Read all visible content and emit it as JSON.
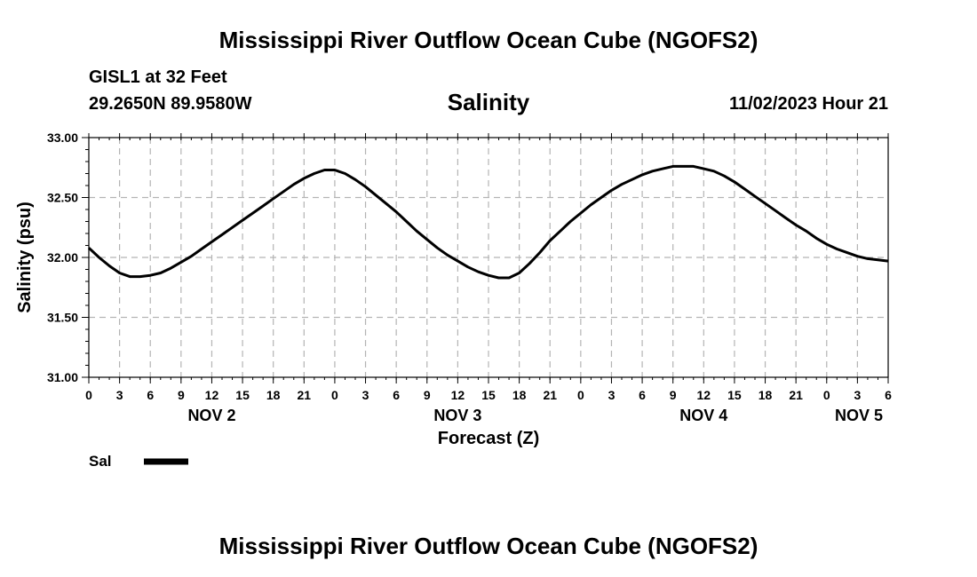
{
  "page": {
    "title": "Mississippi River Outflow Ocean Cube (NGOFS2)",
    "station": "GISL1 at 32 Feet",
    "coords": "29.2650N  89.9580W",
    "datetime": "11/02/2023 Hour 21",
    "footer_title": "Mississippi River Outflow Ocean Cube (NGOFS2)"
  },
  "chart_data": {
    "type": "line",
    "title": "Salinity",
    "xlabel": "Forecast (Z)",
    "ylabel": "Salinity (psu)",
    "ylim": [
      31.0,
      33.0
    ],
    "xlim": [
      0,
      78
    ],
    "y_ticks": [
      "31.00",
      "31.50",
      "32.00",
      "32.50",
      "33.00"
    ],
    "y_tick_values": [
      31.0,
      31.5,
      32.0,
      32.5,
      33.0
    ],
    "x_tick_labels": [
      "0",
      "3",
      "6",
      "9",
      "12",
      "15",
      "18",
      "21",
      "0",
      "3",
      "6",
      "9",
      "12",
      "15",
      "18",
      "21",
      "0",
      "3",
      "6",
      "9",
      "12",
      "15",
      "18",
      "21",
      "0",
      "3",
      "6"
    ],
    "day_labels": [
      {
        "label": "NOV 2",
        "hour": 12
      },
      {
        "label": "NOV 3",
        "hour": 36
      },
      {
        "label": "NOV 4",
        "hour": 60
      },
      {
        "label": "NOV 5",
        "hour": 78
      }
    ],
    "grid": true,
    "legend": {
      "label": "Sal",
      "placement": "bottom-left"
    },
    "series": [
      {
        "name": "Sal",
        "x": [
          0,
          1,
          2,
          3,
          4,
          5,
          6,
          7,
          8,
          9,
          10,
          11,
          12,
          13,
          14,
          15,
          16,
          17,
          18,
          19,
          20,
          21,
          22,
          23,
          24,
          25,
          26,
          27,
          28,
          29,
          30,
          31,
          32,
          33,
          34,
          35,
          36,
          37,
          38,
          39,
          40,
          41,
          42,
          43,
          44,
          45,
          46,
          47,
          48,
          49,
          50,
          51,
          52,
          53,
          54,
          55,
          56,
          57,
          58,
          59,
          60,
          61,
          62,
          63,
          64,
          65,
          66,
          67,
          68,
          69,
          70,
          71,
          72,
          73,
          74,
          75,
          76,
          77,
          78
        ],
        "values": [
          32.08,
          32.0,
          31.93,
          31.87,
          31.84,
          31.84,
          31.85,
          31.87,
          31.91,
          31.96,
          32.01,
          32.07,
          32.13,
          32.19,
          32.25,
          32.31,
          32.37,
          32.43,
          32.49,
          32.55,
          32.61,
          32.66,
          32.7,
          32.73,
          32.73,
          32.7,
          32.65,
          32.59,
          32.52,
          32.45,
          32.38,
          32.3,
          32.22,
          32.15,
          32.08,
          32.02,
          31.97,
          31.92,
          31.88,
          31.85,
          31.83,
          31.83,
          31.87,
          31.95,
          32.04,
          32.14,
          32.22,
          32.3,
          32.37,
          32.44,
          32.5,
          32.56,
          32.61,
          32.65,
          32.69,
          32.72,
          32.74,
          32.76,
          32.76,
          32.76,
          32.74,
          32.72,
          32.68,
          32.63,
          32.57,
          32.51,
          32.45,
          32.39,
          32.33,
          32.27,
          32.22,
          32.16,
          32.11,
          32.07,
          32.04,
          32.01,
          31.99,
          31.98,
          31.97
        ]
      }
    ]
  }
}
